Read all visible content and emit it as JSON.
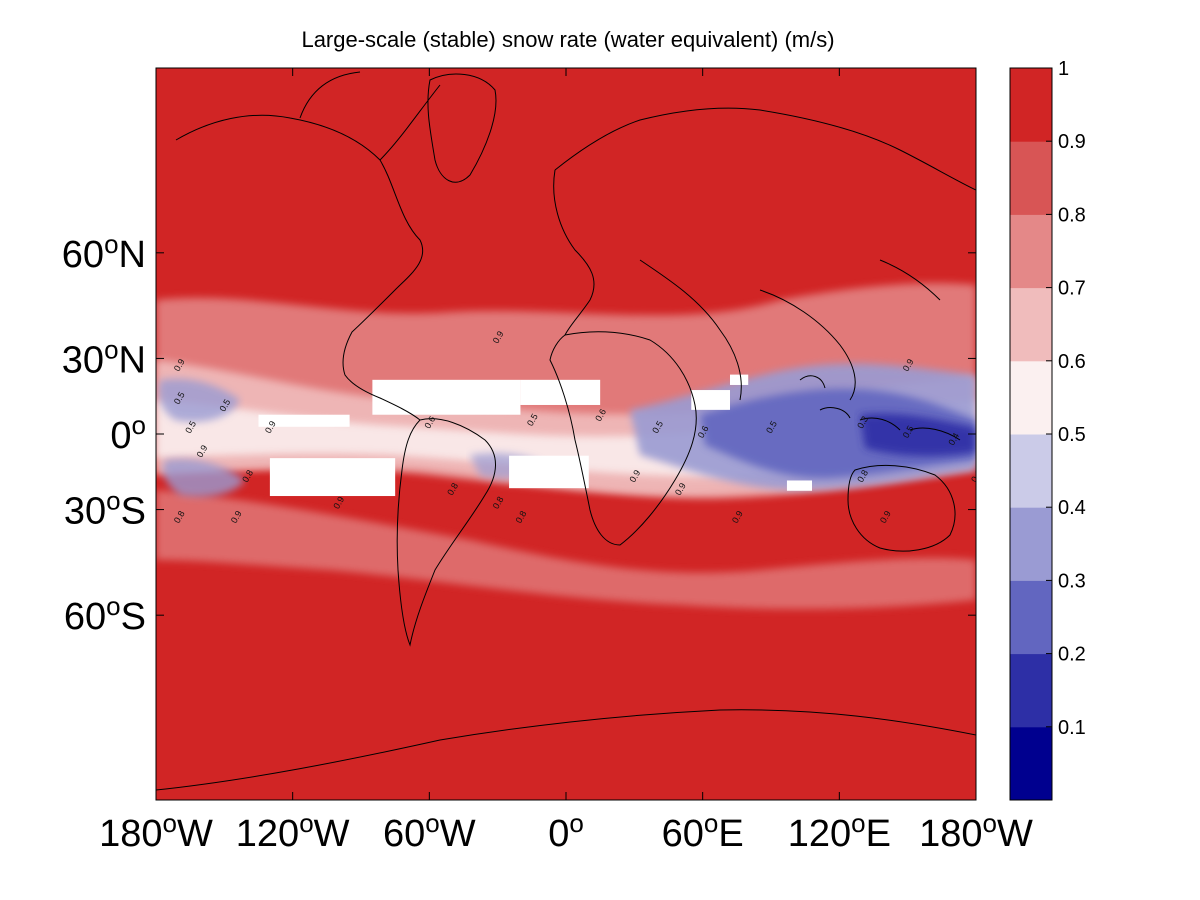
{
  "title": "Large-scale (stable) snow rate (water equivalent) (m/s)",
  "map": {
    "lon_range": [
      -180,
      180
    ],
    "lat_range": [
      -90,
      90
    ],
    "background_color": "#d12525",
    "masked_color": "#ffffff",
    "x_ticks": [
      {
        "lon": -180,
        "value": "180",
        "suffix": "W"
      },
      {
        "lon": -120,
        "value": "120",
        "suffix": "W"
      },
      {
        "lon": -60,
        "value": "60",
        "suffix": "W"
      },
      {
        "lon": 0,
        "value": "0",
        "suffix": ""
      },
      {
        "lon": 60,
        "value": "60",
        "suffix": "E"
      },
      {
        "lon": 120,
        "value": "120",
        "suffix": "E"
      },
      {
        "lon": 180,
        "value": "180",
        "suffix": "W"
      }
    ],
    "y_ticks": [
      {
        "lat": 60,
        "value": "60",
        "suffix": "N"
      },
      {
        "lat": 30,
        "value": "30",
        "suffix": "N"
      },
      {
        "lat": 0,
        "value": "0",
        "suffix": ""
      },
      {
        "lat": -30,
        "value": "30",
        "suffix": "S"
      },
      {
        "lat": -60,
        "value": "60",
        "suffix": "S"
      }
    ],
    "degree_symbol": "o",
    "masked_regions": [
      {
        "name": "north-atlantic-gap",
        "lon": [
          -85,
          -20
        ],
        "lat": [
          8,
          22
        ]
      },
      {
        "name": "gulf-of-guinea-gap",
        "lon": [
          -20,
          15
        ],
        "lat": [
          12,
          22
        ]
      },
      {
        "name": "east-pacific-gap",
        "lon": [
          -135,
          -95
        ],
        "lat": [
          3,
          8
        ]
      },
      {
        "name": "arabian-sea-gap",
        "lon": [
          55,
          72
        ],
        "lat": [
          10,
          18
        ]
      },
      {
        "name": "india-gap",
        "lon": [
          72,
          80
        ],
        "lat": [
          20,
          24
        ]
      },
      {
        "name": "south-pacific-gap",
        "lon": [
          -130,
          -75
        ],
        "lat": [
          -25,
          -10
        ]
      },
      {
        "name": "south-atlantic-gap",
        "lon": [
          -25,
          10
        ],
        "lat": [
          -22,
          -9
        ]
      },
      {
        "name": "indian-ocean-gap",
        "lon": [
          97,
          108
        ],
        "lat": [
          -23,
          -19
        ]
      }
    ],
    "contour_labels": [
      {
        "text": "0.9",
        "lon": -30,
        "lat": 35
      },
      {
        "text": "0.9",
        "lon": -170,
        "lat": 25
      },
      {
        "text": "0.9",
        "lon": 150,
        "lat": 25
      },
      {
        "text": "0.5",
        "lon": -170,
        "lat": 12
      },
      {
        "text": "0.5",
        "lon": -150,
        "lat": 9
      },
      {
        "text": "0.5",
        "lon": -165,
        "lat": 0
      },
      {
        "text": "0.9",
        "lon": -130,
        "lat": 0
      },
      {
        "text": "0.6",
        "lon": -60,
        "lat": 2
      },
      {
        "text": "0.5",
        "lon": -15,
        "lat": 3
      },
      {
        "text": "0.6",
        "lon": 15,
        "lat": 5
      },
      {
        "text": "0.5",
        "lon": 40,
        "lat": 0
      },
      {
        "text": "0.6",
        "lon": 60,
        "lat": -2
      },
      {
        "text": "0.5",
        "lon": 90,
        "lat": 0
      },
      {
        "text": "0.3",
        "lon": 130,
        "lat": 2
      },
      {
        "text": "0.5",
        "lon": 150,
        "lat": -2
      },
      {
        "text": "0.4",
        "lon": 170,
        "lat": -5
      },
      {
        "text": "0.9",
        "lon": -160,
        "lat": -10
      },
      {
        "text": "0.8",
        "lon": -140,
        "lat": -20
      },
      {
        "text": "0.9",
        "lon": -100,
        "lat": -30
      },
      {
        "text": "0.8",
        "lon": -50,
        "lat": -25
      },
      {
        "text": "0.8",
        "lon": -30,
        "lat": -30
      },
      {
        "text": "0.8",
        "lon": -20,
        "lat": -35
      },
      {
        "text": "0.9",
        "lon": 30,
        "lat": -20
      },
      {
        "text": "0.9",
        "lon": 50,
        "lat": -25
      },
      {
        "text": "0.8",
        "lon": 130,
        "lat": -20
      },
      {
        "text": "0.6",
        "lon": 180,
        "lat": -20
      },
      {
        "text": "0.8",
        "lon": -170,
        "lat": -35
      },
      {
        "text": "0.9",
        "lon": -145,
        "lat": -35
      },
      {
        "text": "0.9",
        "lon": 75,
        "lat": -35
      },
      {
        "text": "0.9",
        "lon": 140,
        "lat": -35
      }
    ]
  },
  "colorbar": {
    "range": [
      0,
      1
    ],
    "ticks": [
      "0.1",
      "0.2",
      "0.3",
      "0.4",
      "0.5",
      "0.6",
      "0.7",
      "0.8",
      "0.9",
      "1"
    ],
    "colors": [
      "#00008f",
      "#2d2fa6",
      "#6266c0",
      "#9a9bd3",
      "#cbcbe8",
      "#fbf0f0",
      "#f0bcbc",
      "#e48888",
      "#d85555",
      "#d12525"
    ]
  }
}
